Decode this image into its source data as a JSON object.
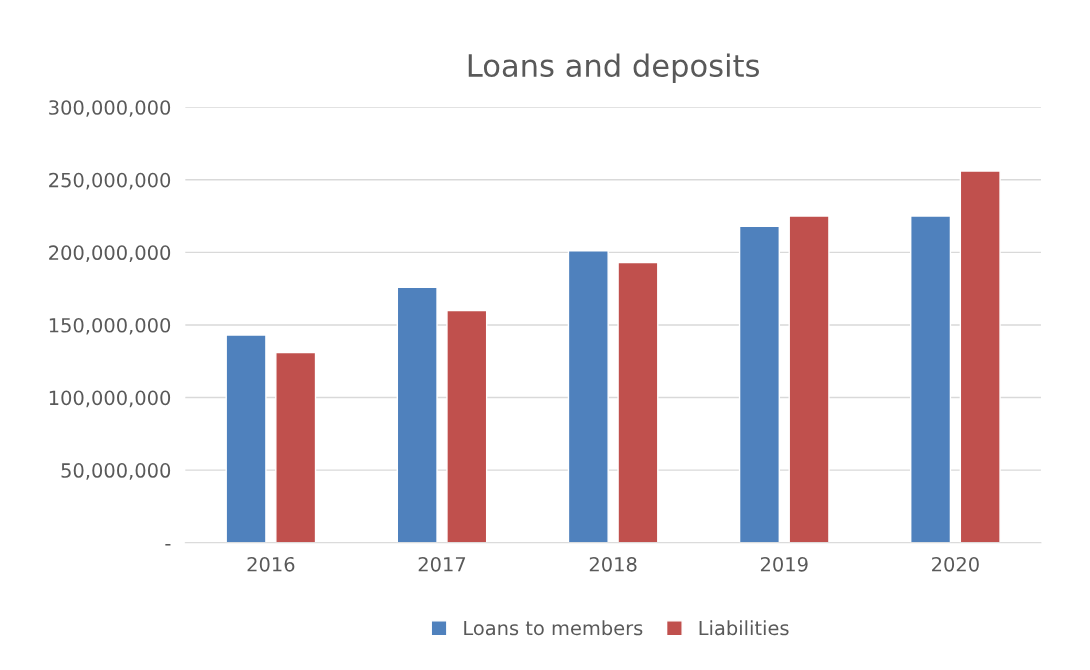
{
  "chart_data": {
    "type": "bar",
    "title": "Loans and deposits",
    "categories": [
      "2016",
      "2017",
      "2018",
      "2019",
      "2020"
    ],
    "series": [
      {
        "name": "Loans to members",
        "color": "#4f81bd",
        "values": [
          143000000,
          176000000,
          201000000,
          218000000,
          225000000
        ]
      },
      {
        "name": "Liabilities",
        "color": "#c0504d",
        "values": [
          131000000,
          160000000,
          193000000,
          225000000,
          256000000
        ]
      }
    ],
    "ylim": [
      0,
      300000000
    ],
    "yticks": [
      {
        "value": 0,
        "label": "-"
      },
      {
        "value": 50000000,
        "label": "50,000,000"
      },
      {
        "value": 100000000,
        "label": "100,000,000"
      },
      {
        "value": 150000000,
        "label": "150,000,000"
      },
      {
        "value": 200000000,
        "label": "200,000,000"
      },
      {
        "value": 250000000,
        "label": "250,000,000"
      },
      {
        "value": 300000000,
        "label": "300,000,000"
      }
    ],
    "grid": "y",
    "legend": "bottom"
  }
}
